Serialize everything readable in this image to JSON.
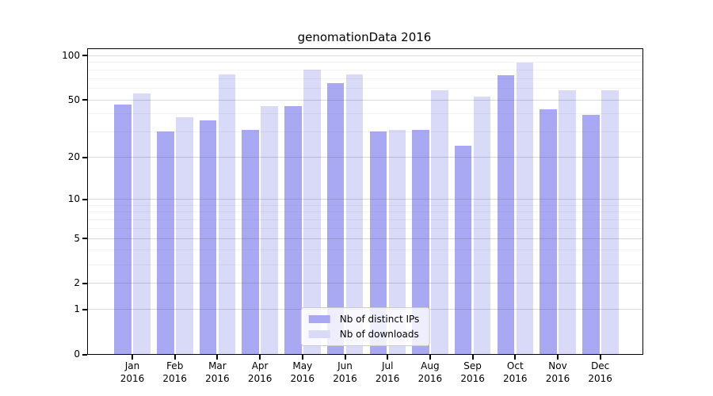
{
  "chart_data": {
    "type": "bar",
    "title": "genomationData 2016",
    "categories": [
      "Jan",
      "Feb",
      "Mar",
      "Apr",
      "May",
      "Jun",
      "Jul",
      "Aug",
      "Sep",
      "Oct",
      "Nov",
      "Dec"
    ],
    "category_year": "2016",
    "series": [
      {
        "name": "Nb of distinct IPs",
        "color": "#a9a9f3",
        "values": [
          46,
          30,
          36,
          31,
          45,
          65,
          30,
          31,
          24,
          73,
          43,
          39
        ]
      },
      {
        "name": "Nb of downloads",
        "color": "#d9d9f8",
        "values": [
          55,
          38,
          74,
          45,
          80,
          74,
          31,
          58,
          52,
          89,
          58,
          58
        ]
      }
    ],
    "yscale": "log1p",
    "yticks": [
      0,
      1,
      2,
      5,
      10,
      20,
      50,
      100
    ],
    "minor_yticks": [
      3,
      4,
      6,
      7,
      8,
      9,
      30,
      40,
      60,
      70,
      80,
      90
    ],
    "ylim": [
      0,
      110
    ],
    "grid": true,
    "legend_position": "lower center"
  }
}
